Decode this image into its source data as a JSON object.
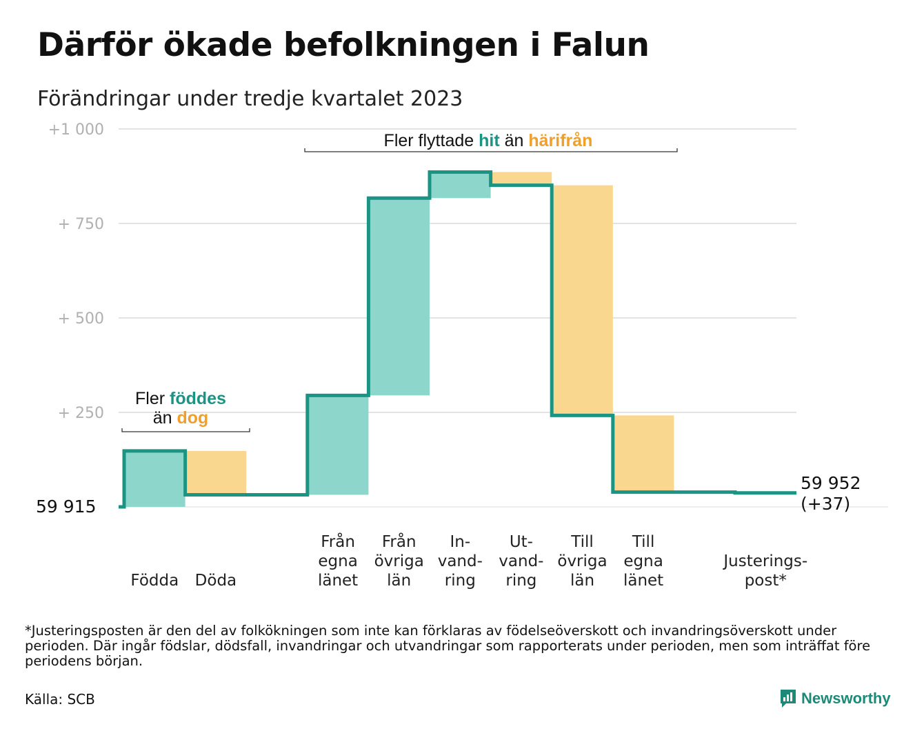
{
  "title": "Därför ökade befolkningen i Falun",
  "subtitle": "Förändringar under tredje kvartalet 2023",
  "chart_data": {
    "type": "waterfall",
    "start_label": "59  915",
    "end_label_lines": [
      "59 952",
      "(+37)"
    ],
    "start_value": 0,
    "end_value": 37,
    "y_ticks": [
      {
        "value": 1000,
        "label": "+1   000"
      },
      {
        "value": 750,
        "label": "+  750"
      },
      {
        "value": 500,
        "label": "+  500"
      },
      {
        "value": 250,
        "label": "+  250"
      }
    ],
    "ylim": [
      0,
      1000
    ],
    "grid": true,
    "steps": [
      {
        "label_lines": [
          "Födda"
        ],
        "from": 0,
        "to": 148,
        "kind": "in"
      },
      {
        "label_lines": [
          "Döda"
        ],
        "from": 148,
        "to": 32,
        "kind": "out"
      },
      {
        "label_lines": [],
        "from": 32,
        "to": 32,
        "kind": "none"
      },
      {
        "label_lines": [
          "Från",
          "egna",
          "länet"
        ],
        "from": 32,
        "to": 295,
        "kind": "in"
      },
      {
        "label_lines": [
          "Från",
          "övriga",
          "län"
        ],
        "from": 295,
        "to": 817,
        "kind": "in"
      },
      {
        "label_lines": [
          "In-",
          "vand-",
          "ring"
        ],
        "from": 817,
        "to": 886,
        "kind": "in"
      },
      {
        "label_lines": [
          "Ut-",
          "vand-",
          "ring"
        ],
        "from": 886,
        "to": 851,
        "kind": "out"
      },
      {
        "label_lines": [
          "Till",
          "övriga",
          "län"
        ],
        "from": 851,
        "to": 242,
        "kind": "out"
      },
      {
        "label_lines": [
          "Till",
          "egna",
          "länet"
        ],
        "from": 242,
        "to": 39,
        "kind": "out"
      },
      {
        "label_lines": [],
        "from": 39,
        "to": 39,
        "kind": "none"
      },
      {
        "label_lines": [
          "Justerings-",
          "post*"
        ],
        "from": 39,
        "to": 37,
        "kind": "none"
      }
    ],
    "annotations": [
      {
        "lines": [
          [
            {
              "text": "Fler ",
              "kind": "plain"
            },
            {
              "text": "föddes",
              "kind": "in"
            }
          ],
          [
            {
              "text": "än ",
              "kind": "plain"
            },
            {
              "text": "dog",
              "kind": "out"
            }
          ]
        ]
      },
      {
        "lines": [
          [
            {
              "text": "Fler flyttade ",
              "kind": "plain"
            },
            {
              "text": "hit",
              "kind": "in"
            },
            {
              "text": "  än ",
              "kind": "plain"
            },
            {
              "text": "härifrån",
              "kind": "out"
            }
          ]
        ]
      }
    ],
    "colors": {
      "in_fill": "#8dd6cc",
      "out_fill": "#f9d78f",
      "line": "#1c9484",
      "in_text": "#1c9484",
      "out_text": "#f0a02a",
      "grid": "#e3e3e3"
    }
  },
  "footnote": "*Justeringsposten är den del av folkökningen som inte kan förklaras av födelseöverskott och invandringsöverskott under perioden. Där ingår födslar, dödsfall, invandringar och utvandringar som rapporterats under perioden, men som inträffat före periodens början.",
  "source": "Källa: SCB",
  "brand": "Newsworthy",
  "brand_icon": "newsworthy-logo-icon"
}
